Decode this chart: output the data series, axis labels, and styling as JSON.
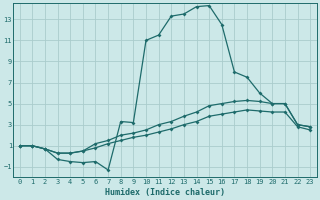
{
  "xlabel": "Humidex (Indice chaleur)",
  "bg_color": "#cce8e8",
  "grid_color": "#aacccc",
  "line_color": "#1e6b6b",
  "xlim": [
    -0.5,
    23.5
  ],
  "ylim": [
    -2,
    14.5
  ],
  "xticks": [
    0,
    1,
    2,
    3,
    4,
    5,
    6,
    7,
    8,
    9,
    10,
    11,
    12,
    13,
    14,
    15,
    16,
    17,
    18,
    19,
    20,
    21,
    22,
    23
  ],
  "yticks": [
    -1,
    1,
    3,
    5,
    7,
    9,
    11,
    13
  ],
  "curve_x": [
    0,
    1,
    2,
    3,
    4,
    5,
    6,
    7,
    8,
    9,
    10,
    11,
    12,
    13,
    14,
    15,
    16,
    17,
    18,
    19,
    20,
    21,
    22,
    23
  ],
  "curve_y": [
    1.0,
    1.0,
    0.7,
    -0.3,
    -0.5,
    -0.6,
    -0.5,
    -1.3,
    3.3,
    3.2,
    11.0,
    11.5,
    13.3,
    13.5,
    14.2,
    14.3,
    12.5,
    8.0,
    7.5,
    6.0,
    5.0,
    5.0,
    3.0,
    2.8
  ],
  "line1_x": [
    0,
    1,
    2,
    3,
    4,
    5,
    6,
    7,
    8,
    9,
    10,
    11,
    12,
    13,
    14,
    15,
    16,
    17,
    18,
    19,
    20,
    21,
    22,
    23
  ],
  "line1_y": [
    1.0,
    1.0,
    0.7,
    0.3,
    0.3,
    0.5,
    1.2,
    1.5,
    2.0,
    2.2,
    2.5,
    3.0,
    3.3,
    3.8,
    4.2,
    4.8,
    5.0,
    5.2,
    5.3,
    5.2,
    5.0,
    5.0,
    3.0,
    2.8
  ],
  "line2_x": [
    0,
    1,
    2,
    3,
    4,
    5,
    6,
    7,
    8,
    9,
    10,
    11,
    12,
    13,
    14,
    15,
    16,
    17,
    18,
    19,
    20,
    21,
    22,
    23
  ],
  "line2_y": [
    1.0,
    1.0,
    0.7,
    0.3,
    0.3,
    0.5,
    0.8,
    1.2,
    1.5,
    1.8,
    2.0,
    2.3,
    2.6,
    3.0,
    3.3,
    3.8,
    4.0,
    4.2,
    4.4,
    4.3,
    4.2,
    4.2,
    2.8,
    2.5
  ]
}
